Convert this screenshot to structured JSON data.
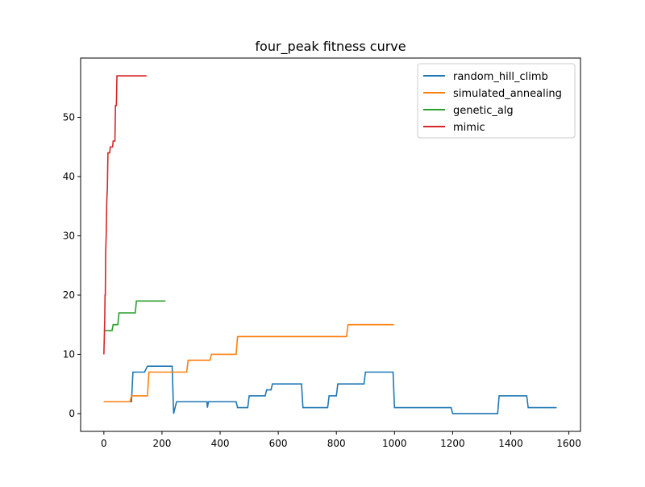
{
  "chart_data": {
    "type": "line",
    "title": "four_peak fitness curve",
    "xlabel": "",
    "ylabel": "",
    "xlim": [
      -80,
      1640
    ],
    "ylim": [
      -3,
      60
    ],
    "xticks": [
      0,
      200,
      400,
      600,
      800,
      1000,
      1200,
      1400,
      1600
    ],
    "yticks": [
      0,
      10,
      20,
      30,
      40,
      50
    ],
    "grid": false,
    "legend_position": "top-right",
    "series": [
      {
        "name": "random_hill_climb",
        "color": "#1f77b4",
        "step": true,
        "x": [
          0,
          95,
          100,
          140,
          150,
          235,
          240,
          250,
          355,
          356,
          360,
          365,
          455,
          460,
          495,
          500,
          555,
          560,
          575,
          580,
          680,
          685,
          770,
          775,
          800,
          805,
          895,
          900,
          995,
          1000,
          1195,
          1200,
          1355,
          1360,
          1455,
          1460,
          1558
        ],
        "y": [
          2,
          2,
          7,
          7,
          8,
          8,
          0,
          2,
          2,
          1,
          2,
          2,
          2,
          1,
          1,
          3,
          3,
          4,
          4,
          5,
          5,
          1,
          1,
          3,
          3,
          5,
          5,
          7,
          7,
          1,
          1,
          0,
          0,
          3,
          3,
          1,
          1
        ]
      },
      {
        "name": "simulated_annealing",
        "color": "#ff7f0e",
        "step": true,
        "x": [
          0,
          90,
          95,
          150,
          155,
          285,
          290,
          365,
          370,
          455,
          460,
          835,
          840,
          998
        ],
        "y": [
          2,
          2,
          3,
          3,
          7,
          7,
          9,
          9,
          10,
          10,
          13,
          13,
          15,
          15
        ]
      },
      {
        "name": "genetic_alg",
        "color": "#2ca02c",
        "step": true,
        "x": [
          0,
          28,
          32,
          48,
          52,
          108,
          112,
          212
        ],
        "y": [
          14,
          14,
          15,
          15,
          17,
          17,
          19,
          19
        ]
      },
      {
        "name": "mimic",
        "color": "#d62728",
        "step": true,
        "x": [
          0,
          2,
          3,
          4,
          5,
          6,
          8,
          10,
          12,
          14,
          20,
          22,
          30,
          32,
          38,
          40,
          43,
          45,
          147
        ],
        "y": [
          10,
          14,
          16,
          20,
          20,
          27,
          30,
          36,
          38,
          44,
          44,
          45,
          45,
          46,
          46,
          52,
          52,
          57,
          57
        ]
      }
    ]
  }
}
